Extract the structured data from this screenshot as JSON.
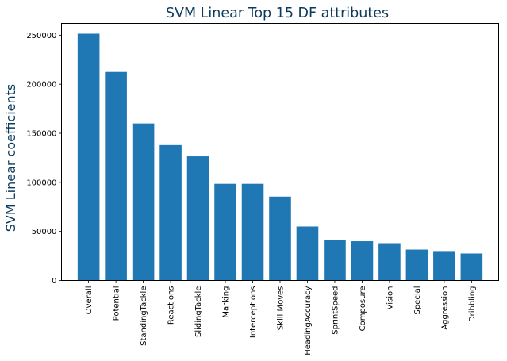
{
  "chart_data": {
    "type": "bar",
    "title": "SVM Linear Top 15 DF attributes",
    "xlabel": "",
    "ylabel": "SVM Linear coefficients",
    "categories": [
      "Overall",
      "Potential",
      "StandingTackle",
      "Reactions",
      "SlidingTackle",
      "Marking",
      "Interceptions",
      "Skill Moves",
      "HeadingAccuracy",
      "SprintSpeed",
      "Composure",
      "Vision",
      "Special",
      "Aggression",
      "Dribbling"
    ],
    "values": [
      251500,
      212500,
      160000,
      138000,
      126500,
      98500,
      98500,
      85500,
      55000,
      41500,
      40000,
      38000,
      31500,
      30000,
      27500
    ],
    "yticks": [
      0,
      50000,
      100000,
      150000,
      200000,
      250000
    ],
    "ylim": [
      0,
      262000
    ],
    "bar_color": "#1f77b4",
    "grid": false,
    "legend": "none"
  }
}
